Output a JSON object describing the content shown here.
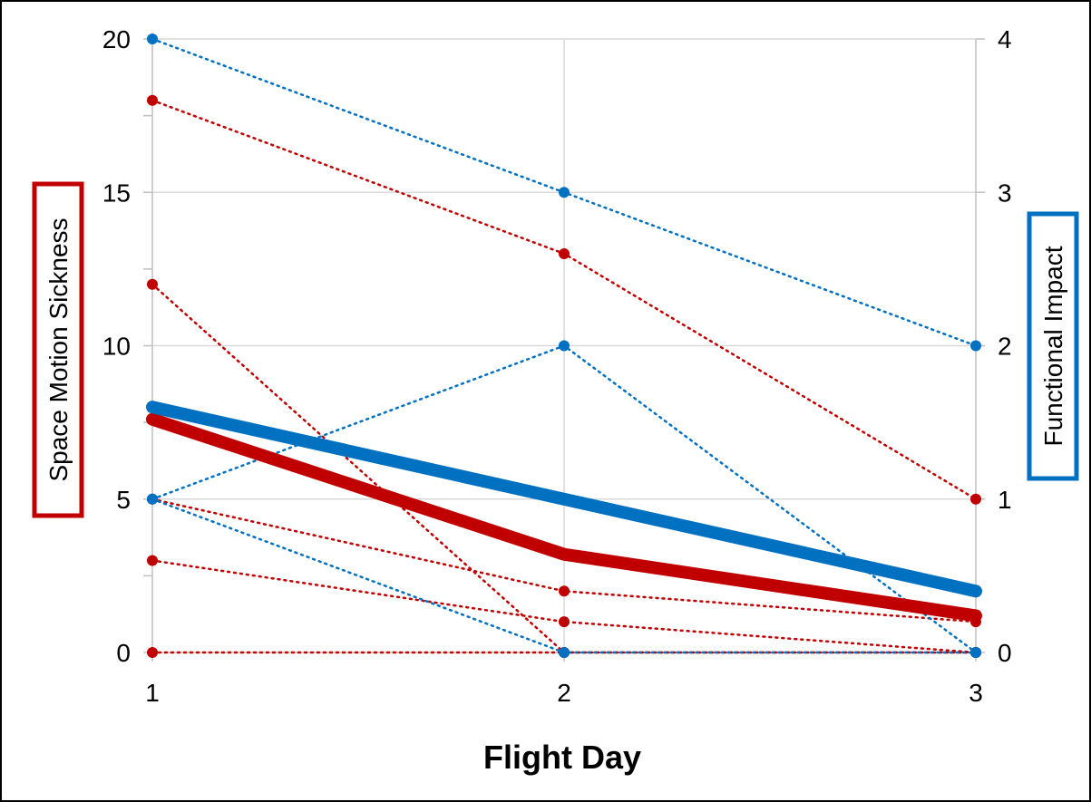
{
  "chart_data": {
    "type": "line",
    "title": "",
    "xlabel": "Flight Day",
    "ylabel_left": "Space Motion Sickness",
    "ylabel_right": "Functional Impact",
    "x": [
      1,
      2,
      3
    ],
    "x_ticks": [
      "1",
      "2",
      "3"
    ],
    "y_left_ticks": [
      "0",
      "5",
      "10",
      "15",
      "20"
    ],
    "y_right_ticks": [
      "0",
      "1",
      "2",
      "3",
      "4"
    ],
    "ylim_left": [
      0,
      20
    ],
    "ylim_right": [
      0,
      4
    ],
    "grid": true,
    "legend": "none",
    "colors": {
      "sms": "#c00000",
      "functional": "#0070c0"
    },
    "series": [
      {
        "axis": "left",
        "color": "sms",
        "style": "dotted",
        "values": [
          18,
          13,
          5
        ]
      },
      {
        "axis": "left",
        "color": "sms",
        "style": "dotted",
        "values": [
          12,
          0,
          0
        ]
      },
      {
        "axis": "left",
        "color": "sms",
        "style": "dotted",
        "values": [
          5,
          2,
          1
        ]
      },
      {
        "axis": "left",
        "color": "sms",
        "style": "dotted",
        "values": [
          3,
          1,
          0
        ]
      },
      {
        "axis": "left",
        "color": "sms",
        "style": "dotted",
        "values": [
          0,
          0,
          0
        ]
      },
      {
        "axis": "right",
        "color": "functional",
        "style": "dotted",
        "values": [
          4,
          3,
          2
        ]
      },
      {
        "axis": "right",
        "color": "functional",
        "style": "dotted",
        "values": [
          1,
          2,
          0
        ]
      },
      {
        "axis": "right",
        "color": "functional",
        "style": "dotted",
        "values": [
          1,
          0,
          0
        ]
      },
      {
        "axis": "left",
        "color": "sms",
        "style": "mean",
        "values": [
          7.6,
          3.2,
          1.2
        ]
      },
      {
        "axis": "right",
        "color": "functional",
        "style": "mean",
        "values": [
          1.6,
          1.0,
          0.4
        ]
      }
    ]
  }
}
